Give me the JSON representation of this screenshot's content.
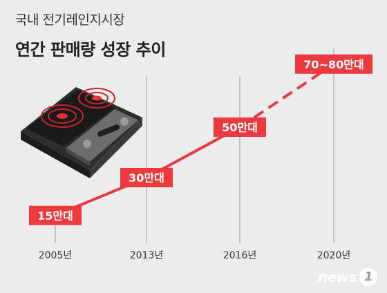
{
  "header": {
    "title": "국내 전기레인지시장",
    "subtitle": "연간 판매량 성장 추이"
  },
  "credit": {
    "text": "news",
    "badge": "1"
  },
  "colors": {
    "accent": "#ec3a3e",
    "background": "#ececec",
    "axis": "#999999"
  },
  "chart_data": {
    "type": "line",
    "title": "연간 판매량 성장 추이",
    "categories": [
      "2005년",
      "2013년",
      "2016년",
      "2020년"
    ],
    "values": [
      15,
      30,
      50,
      75
    ],
    "data_labels": [
      "15만대",
      "30만대",
      "50만대",
      "70~80만대"
    ],
    "unit": "만대",
    "projected_from_index": 2,
    "ylim": [
      0,
      100
    ],
    "grid": false,
    "legend": "none"
  }
}
